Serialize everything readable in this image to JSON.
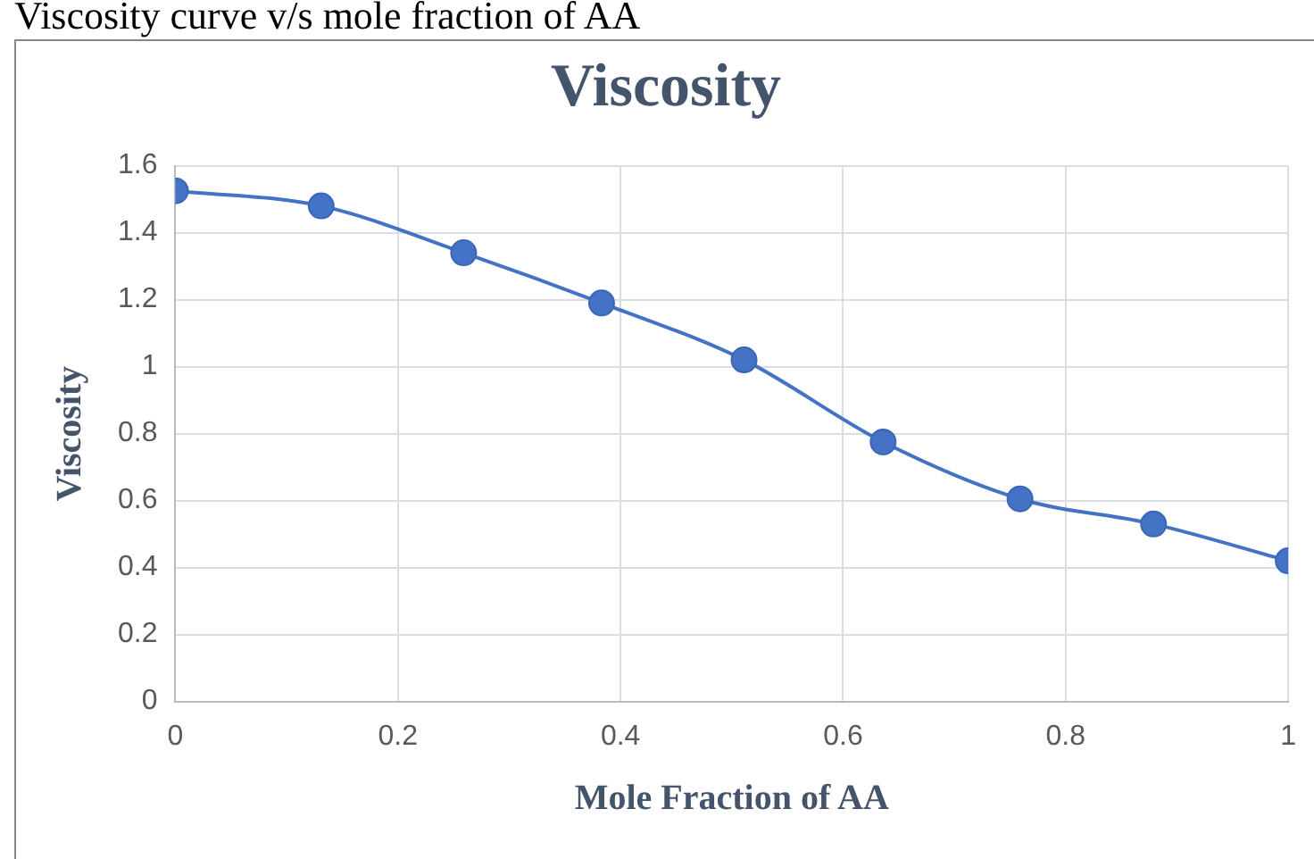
{
  "chart_data": {
    "type": "line",
    "title": "Viscosity",
    "xlabel": "Mole Fraction of AA",
    "ylabel": "Viscosity",
    "annotations": [
      "Viscosity curve v/s mole fraction of AA"
    ],
    "x": [
      0,
      0.131,
      0.259,
      0.383,
      0.511,
      0.636,
      0.759,
      0.879,
      1
    ],
    "series": [
      {
        "color": "#4472c4",
        "values": [
          1.525,
          1.48,
          1.34,
          1.19,
          1.02,
          0.775,
          0.605,
          0.53,
          0.42
        ]
      }
    ],
    "xlim": [
      0,
      1
    ],
    "xticks": [
      0,
      0.2,
      0.4,
      0.6,
      0.8,
      1
    ],
    "ylim": [
      0,
      1.6
    ],
    "yticks": [
      0,
      0.2,
      0.4,
      0.6,
      0.8,
      1,
      1.2,
      1.4,
      1.6
    ],
    "grid": true,
    "legend": false,
    "marker": "circle",
    "line_style": "solid"
  }
}
